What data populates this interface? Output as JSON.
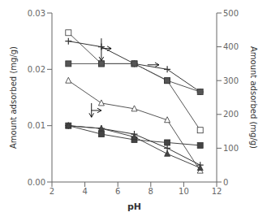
{
  "chart_data": {
    "type": "line",
    "xlabel": "pH",
    "ylabel": "Amount adsorbed (mg/g)",
    "y2label": "Amount adsorbed (mg/g)",
    "xlim": [
      2,
      12
    ],
    "xticks": [
      2,
      4,
      6,
      8,
      10,
      12
    ],
    "ylim": [
      0,
      0.03
    ],
    "yticks": [
      {
        "value": 0,
        "label": "0.00"
      },
      0.01,
      0.02,
      0.03
    ],
    "y2lim": [
      0,
      500
    ],
    "y2ticks": [
      0,
      100,
      200,
      300,
      400,
      500
    ],
    "grid": false,
    "x": [
      3,
      5,
      7,
      9,
      11
    ],
    "series": [
      {
        "color": "#555555",
        "marker": "square-open",
        "values": [
          0.0265,
          0.021,
          0.021,
          0.018,
          0.0092
        ]
      },
      {
        "color": "#333333",
        "marker": "plus",
        "values": [
          0.025,
          0.024,
          0.021,
          0.02,
          0.016
        ]
      },
      {
        "color": "#555555",
        "marker": "square",
        "values": [
          0.021,
          0.021,
          0.021,
          0.018,
          0.016
        ]
      },
      {
        "color": "#555555",
        "marker": "triangle-open",
        "values": [
          0.018,
          0.014,
          0.013,
          0.011,
          0.002
        ]
      },
      {
        "color": "#333333",
        "marker": "plus",
        "values": [
          0.01,
          0.0095,
          0.0085,
          0.006,
          0.003
        ]
      },
      {
        "color": "#444444",
        "marker": "square",
        "values": [
          0.01,
          0.0085,
          0.0075,
          0.007,
          0.0065
        ]
      },
      {
        "color": "#444444",
        "marker": "triangle",
        "values": [
          0.01,
          0.0095,
          0.008,
          0.005,
          0.0025
        ]
      }
    ],
    "annotations": [
      {
        "xy": [
          5.6,
          0.0237
        ],
        "xytext": [
          5,
          0.0237
        ]
      },
      {
        "xy": [
          5,
          0.0215
        ],
        "xytext": [
          5,
          0.0255
        ]
      },
      {
        "xy": [
          5,
          0.0127
        ],
        "xytext": [
          4.4,
          0.0127
        ]
      },
      {
        "xy": [
          4.4,
          0.0115
        ],
        "xytext": [
          4.4,
          0.014
        ]
      },
      {
        "xy": [
          8.5,
          0.0208
        ],
        "xytext": [
          7.8,
          0.0208
        ]
      }
    ]
  }
}
